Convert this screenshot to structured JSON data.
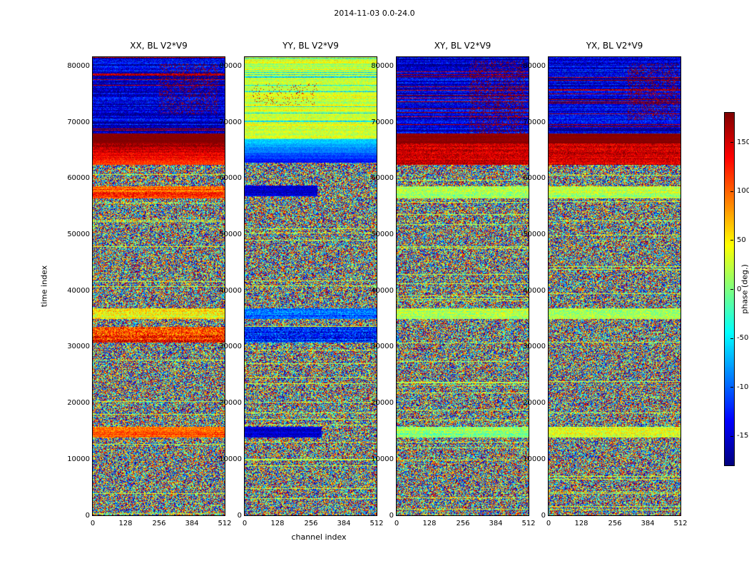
{
  "chart_data": {
    "type": "heatmap",
    "title": "2014-11-03 0.0-24.0",
    "xlabel": "channel index",
    "ylabel": "time index",
    "x_range": [
      0,
      512
    ],
    "x_ticks": [
      0,
      128,
      256,
      384,
      512
    ],
    "y_range": [
      0,
      81600
    ],
    "y_ticks": [
      0,
      10000,
      20000,
      30000,
      40000,
      50000,
      60000,
      70000,
      80000
    ],
    "grid": false,
    "colormap": "jet",
    "colorbar": {
      "label": "phase (deg.)",
      "range": [
        -180,
        180
      ],
      "ticks": [
        150,
        100,
        50,
        0,
        -50,
        -100,
        -150
      ]
    },
    "texture": {
      "seed": 20141103,
      "noise_line_prob": 0.045,
      "noise_line_base": 25,
      "noise_line_jitter": 90
    },
    "panels": [
      {
        "id": "XX",
        "title": "XX, BL V2*V9",
        "bands": [
          {
            "from": 68000,
            "to": 81600,
            "base": -150,
            "jitter": 70,
            "row_jitter": 35,
            "stripe_p": 0.1,
            "stripe_phase": 165,
            "speckle": {
              "from": 71500,
              "to": 80500,
              "ch0": 0.5,
              "ch1": 0.95,
              "density": 0.2,
              "phase": 170
            }
          },
          {
            "from": 66300,
            "to": 68000,
            "base": 178,
            "jitter": 12,
            "row_jitter": 4
          },
          {
            "from": 62500,
            "to": 66300,
            "base": 115,
            "grad_to": 172,
            "jitter": 45,
            "row_jitter": 12
          },
          {
            "from": 56500,
            "to": 58600,
            "base": 105,
            "jitter": 70,
            "row_jitter": 25
          },
          {
            "from": 35000,
            "to": 36800,
            "base": 45,
            "jitter": 80,
            "row_jitter": 20
          },
          {
            "from": 30700,
            "to": 33600,
            "base": 115,
            "jitter": 110,
            "row_jitter": 30
          },
          {
            "from": 13800,
            "to": 15700,
            "base": 105,
            "jitter": 60,
            "row_jitter": 20
          }
        ]
      },
      {
        "id": "YY",
        "title": "YY, BL V2*V9",
        "bands": [
          {
            "from": 67000,
            "to": 81600,
            "base": 25,
            "jitter": 45,
            "row_jitter": 25,
            "stripe_p": 0.1,
            "stripe_phase": -55,
            "speckle": {
              "from": 73000,
              "to": 77000,
              "ch0": 0.05,
              "ch1": 0.55,
              "density": 0.06,
              "phase": 150
            }
          },
          {
            "from": 62800,
            "to": 67000,
            "base": -135,
            "grad_to": -55,
            "jitter": 30,
            "row_jitter": 10
          },
          {
            "from": 56800,
            "to": 58700,
            "base": -150,
            "jitter": 45,
            "row_jitter": 15,
            "noise_right": 0.55
          },
          {
            "from": 35000,
            "to": 36800,
            "base": -95,
            "jitter": 70,
            "row_jitter": 20
          },
          {
            "from": 30700,
            "to": 33600,
            "base": -120,
            "jitter": 100,
            "row_jitter": 30
          },
          {
            "from": 13800,
            "to": 15700,
            "base": -150,
            "jitter": 45,
            "row_jitter": 15,
            "noise_right": 0.58
          }
        ]
      },
      {
        "id": "XY",
        "title": "XY, BL V2*V9",
        "bands": [
          {
            "from": 68000,
            "to": 81600,
            "base": -150,
            "jitter": 70,
            "row_jitter": 35,
            "stripe_p": 0.1,
            "stripe_phase": 165,
            "speckle": {
              "from": 68000,
              "to": 81000,
              "ch0": 0.55,
              "ch1": 0.97,
              "density": 0.22,
              "phase": 170
            }
          },
          {
            "from": 66300,
            "to": 68000,
            "base": 176,
            "jitter": 15,
            "row_jitter": 5
          },
          {
            "from": 62500,
            "to": 66300,
            "base": 150,
            "jitter": 55,
            "row_jitter": 15
          },
          {
            "from": 56500,
            "to": 58600,
            "base": 15,
            "jitter": 70,
            "row_jitter": 20
          },
          {
            "from": 35000,
            "to": 36800,
            "base": 15,
            "jitter": 70,
            "row_jitter": 20
          },
          {
            "from": 13800,
            "to": 15700,
            "base": 5,
            "jitter": 80,
            "row_jitter": 20
          }
        ]
      },
      {
        "id": "YX",
        "title": "YX, BL V2*V9",
        "bands": [
          {
            "from": 68000,
            "to": 81600,
            "base": -150,
            "jitter": 70,
            "row_jitter": 35,
            "stripe_p": 0.1,
            "stripe_phase": 165,
            "speckle": {
              "from": 70500,
              "to": 80500,
              "ch0": 0.6,
              "ch1": 0.98,
              "density": 0.22,
              "phase": 170
            }
          },
          {
            "from": 66300,
            "to": 68000,
            "base": 178,
            "jitter": 10,
            "row_jitter": 4
          },
          {
            "from": 62500,
            "to": 66300,
            "base": 150,
            "jitter": 55,
            "row_jitter": 15
          },
          {
            "from": 56500,
            "to": 58600,
            "base": 20,
            "jitter": 70,
            "row_jitter": 20
          },
          {
            "from": 35000,
            "to": 36800,
            "base": 20,
            "jitter": 70,
            "row_jitter": 20
          },
          {
            "from": 13800,
            "to": 15700,
            "base": 35,
            "jitter": 70,
            "row_jitter": 20
          }
        ]
      }
    ]
  }
}
